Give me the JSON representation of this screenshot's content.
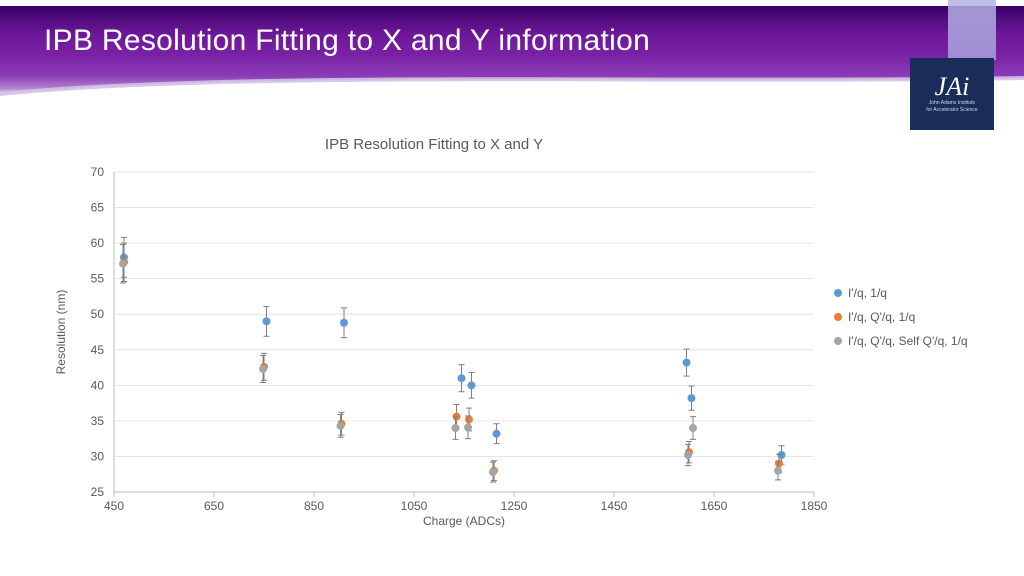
{
  "slide": {
    "title": "IPB Resolution Fitting to X and Y information",
    "logo_text": "JAi",
    "logo_sub1": "John Adams Institute",
    "logo_sub2": "for Accelerator Science"
  },
  "chart": {
    "type": "scatter-with-error-bars",
    "title": "IPB Resolution Fitting to X and Y",
    "xlabel": "Charge (ADCs)",
    "ylabel": "Resolution (nm)",
    "xlim": [
      450,
      1850
    ],
    "ylim": [
      25,
      70
    ],
    "xtick_step": 200,
    "ytick_step": 5,
    "background_color": "#ffffff",
    "grid_color": "#e6e6e6",
    "axis_color": "#bfbfbf",
    "label_color": "#595959",
    "tick_fontsize": 12,
    "label_fontsize": 12,
    "title_fontsize": 15,
    "marker_size": 4,
    "error_cap_halfwidth": 3,
    "error_line_color": "#7f7f7f",
    "series": [
      {
        "name": "I'/q, 1/q",
        "color": "#5b9bd5",
        "points": [
          {
            "x": 470,
            "y": 58.0,
            "err": 2.8
          },
          {
            "x": 755,
            "y": 49.0,
            "err": 2.1
          },
          {
            "x": 910,
            "y": 48.8,
            "err": 2.1
          },
          {
            "x": 1145,
            "y": 41.0,
            "err": 1.9
          },
          {
            "x": 1165,
            "y": 40.0,
            "err": 1.8
          },
          {
            "x": 1215,
            "y": 33.2,
            "err": 1.4
          },
          {
            "x": 1595,
            "y": 43.2,
            "err": 1.9
          },
          {
            "x": 1605,
            "y": 38.2,
            "err": 1.7
          },
          {
            "x": 1785,
            "y": 30.2,
            "err": 1.3
          }
        ]
      },
      {
        "name": "I'/q, Q'/q, 1/q",
        "color": "#ed7d31",
        "points": [
          {
            "x": 470,
            "y": 57.3,
            "err": 2.7
          },
          {
            "x": 750,
            "y": 42.6,
            "err": 1.9
          },
          {
            "x": 905,
            "y": 34.6,
            "err": 1.6
          },
          {
            "x": 1135,
            "y": 35.6,
            "err": 1.7
          },
          {
            "x": 1160,
            "y": 35.2,
            "err": 1.6
          },
          {
            "x": 1210,
            "y": 28.0,
            "err": 1.4
          },
          {
            "x": 1600,
            "y": 30.6,
            "err": 1.5
          },
          {
            "x": 1780,
            "y": 29.0,
            "err": 1.3
          }
        ]
      },
      {
        "name": "I'/q, Q'/q, Self Q'/q, 1/q",
        "color": "#a5a5a5",
        "points": [
          {
            "x": 468,
            "y": 57.1,
            "err": 2.7
          },
          {
            "x": 748,
            "y": 42.3,
            "err": 1.9
          },
          {
            "x": 903,
            "y": 34.3,
            "err": 1.6
          },
          {
            "x": 1133,
            "y": 34.0,
            "err": 1.6
          },
          {
            "x": 1158,
            "y": 34.1,
            "err": 1.6
          },
          {
            "x": 1208,
            "y": 27.8,
            "err": 1.4
          },
          {
            "x": 1598,
            "y": 30.2,
            "err": 1.5
          },
          {
            "x": 1608,
            "y": 34.0,
            "err": 1.6
          },
          {
            "x": 1778,
            "y": 28.0,
            "err": 1.3
          }
        ]
      }
    ]
  }
}
